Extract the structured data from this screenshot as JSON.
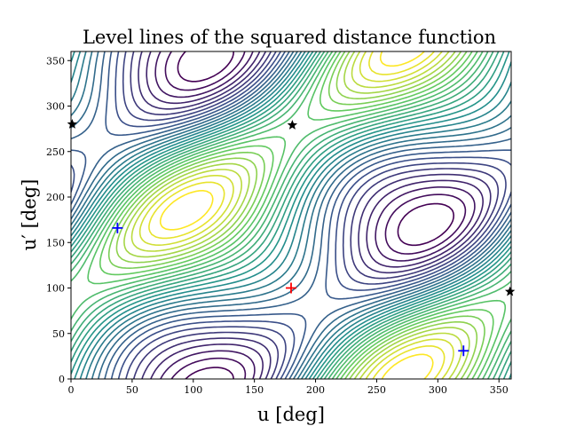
{
  "chart_data": {
    "type": "contour",
    "title": "Level lines of the squared distance function",
    "xlabel": "u [deg]",
    "ylabel": "u′ [deg]",
    "xlim": [
      0,
      360
    ],
    "ylim": [
      0,
      360
    ],
    "xticks": [
      "0",
      "50",
      "100",
      "150",
      "200",
      "250",
      "300",
      "350"
    ],
    "yticks": [
      "0",
      "50",
      "100",
      "150",
      "200",
      "250",
      "300",
      "350"
    ],
    "colormap": [
      "#440154",
      "#3b528b",
      "#21918c",
      "#5ec962",
      "#fde725"
    ],
    "contour_levels": 30,
    "global_minimum": {
      "x": 180,
      "y": 100,
      "color": "#ff0000",
      "marker": "plus"
    },
    "local_minima": [
      {
        "x": 38,
        "y": 166,
        "color": "#0000ff",
        "marker": "plus"
      },
      {
        "x": 321,
        "y": 31,
        "color": "#0000ff",
        "marker": "plus"
      }
    ],
    "saddle_points": [
      {
        "x": 1,
        "y": 280,
        "color": "#000000",
        "marker": "star"
      },
      {
        "x": 181,
        "y": 279,
        "color": "#000000",
        "marker": "star"
      },
      {
        "x": 359,
        "y": 96,
        "color": "#000000",
        "marker": "star"
      }
    ]
  }
}
